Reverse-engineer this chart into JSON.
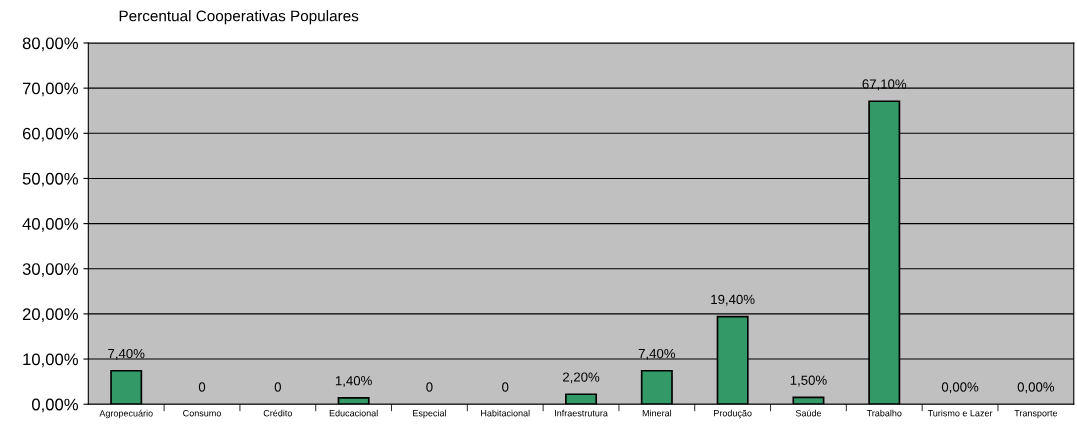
{
  "chart_data": {
    "type": "bar",
    "title": "Percentual Cooperativas Populares",
    "categories": [
      "Agropecuário",
      "Consumo",
      "Crédito",
      "Educacional",
      "Especial",
      "Habitacional",
      "Infraestrutura",
      "Mineral",
      "Produção",
      "Saúde",
      "Trabalho",
      "Turismo e Lazer",
      "Transporte"
    ],
    "values": [
      7.4,
      0,
      0,
      1.4,
      0,
      0,
      2.2,
      7.4,
      19.4,
      1.5,
      67.1,
      0,
      0
    ],
    "value_labels": [
      "7,40%",
      "0",
      "0",
      "1,40%",
      "0",
      "0",
      "2,20%",
      "7,40%",
      "19,40%",
      "1,50%",
      "67,10%",
      "0,00%",
      "0,00%"
    ],
    "color": "#339966",
    "ylim": [
      0,
      80
    ],
    "yticks": [
      {
        "value": 0,
        "label": "0,00%"
      },
      {
        "value": 10,
        "label": "10,00%"
      },
      {
        "value": 20,
        "label": "20,00%"
      },
      {
        "value": 30,
        "label": "30,00%"
      },
      {
        "value": 40,
        "label": "40,00%"
      },
      {
        "value": 50,
        "label": "50,00%"
      },
      {
        "value": 60,
        "label": "60,00%"
      },
      {
        "value": 70,
        "label": "70,00%"
      },
      {
        "value": 80,
        "label": "80,00%"
      }
    ],
    "grid": "y"
  }
}
